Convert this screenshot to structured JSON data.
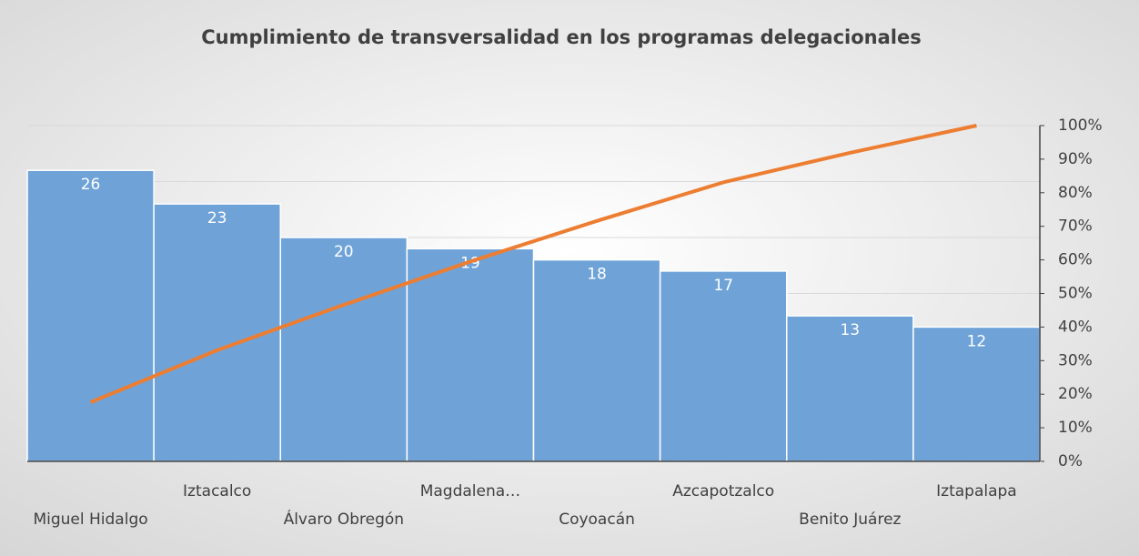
{
  "chart_data": {
    "type": "pareto",
    "title": "Cumplimiento de transversalidad en los programas delegacionales",
    "categories": [
      "Miguel Hidalgo",
      "Iztacalco",
      "Álvaro Obregón",
      "Magdalena…",
      "Coyoacán",
      "Azcapotzalco",
      "Benito Juárez",
      "Iztapalapa"
    ],
    "series": [
      {
        "type": "bar",
        "color": "#6fa3d8",
        "values": [
          26,
          23,
          20,
          19,
          18,
          17,
          13,
          12
        ]
      },
      {
        "type": "line",
        "axis": "y2",
        "color": "#ed7d31",
        "values": [
          17.6,
          33.1,
          46.6,
          59.5,
          71.6,
          83.1,
          91.9,
          100
        ]
      }
    ],
    "ylim": [
      0,
      30
    ],
    "yticks": [
      0,
      5,
      10,
      15,
      20,
      25,
      30
    ],
    "y2lim": [
      0,
      100
    ],
    "y2ticks": [
      {
        "value": 0,
        "label": "0%"
      },
      {
        "value": 10,
        "label": "10%"
      },
      {
        "value": 20,
        "label": "20%"
      },
      {
        "value": 30,
        "label": "30%"
      },
      {
        "value": 40,
        "label": "40%"
      },
      {
        "value": 50,
        "label": "50%"
      },
      {
        "value": 60,
        "label": "60%"
      },
      {
        "value": 70,
        "label": "70%"
      },
      {
        "value": 80,
        "label": "80%"
      },
      {
        "value": 90,
        "label": "90%"
      },
      {
        "value": 100,
        "label": "100%"
      }
    ],
    "grid": true
  }
}
